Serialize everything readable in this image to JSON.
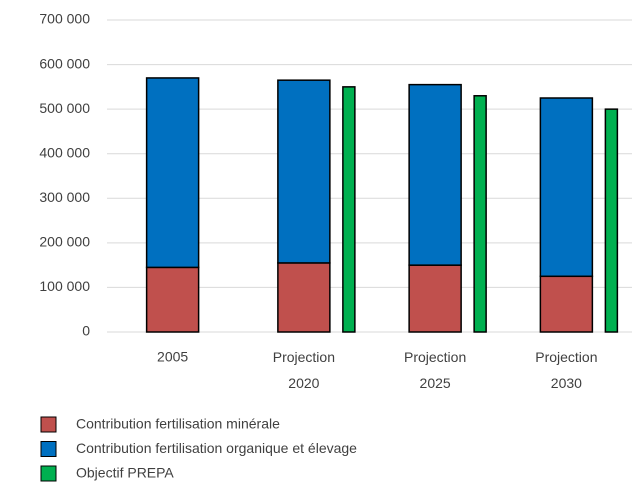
{
  "chart_data": {
    "type": "bar",
    "categories": [
      "2005",
      "Projection 2020",
      "Projection 2025",
      "Projection 2030"
    ],
    "series": [
      {
        "name": "Contribution fertilisation minérale",
        "color": "#c0504d",
        "stack": "a",
        "values": [
          145000,
          155000,
          150000,
          125000
        ]
      },
      {
        "name": "Contribution fertilisation organique et élevage",
        "color": "#0070c0",
        "stack": "a",
        "values": [
          425000,
          410000,
          405000,
          400000
        ]
      },
      {
        "name": "Objectif PREPA",
        "color": "#00b050",
        "stack": "b",
        "values": [
          null,
          550000,
          530000,
          500000
        ]
      }
    ],
    "ylim": [
      0,
      700000
    ],
    "yticks": [
      0,
      {
        "value": 100000,
        "label": "100 000"
      },
      {
        "value": 200000,
        "label": "200 000"
      },
      {
        "value": 300000,
        "label": "300 000"
      },
      {
        "value": 400000,
        "label": "400 000"
      },
      {
        "value": 500000,
        "label": "500 000"
      },
      {
        "value": 600000,
        "label": "600 000"
      },
      {
        "value": 700000,
        "label": "700 000"
      }
    ],
    "grid": true,
    "legend": "bottom"
  }
}
